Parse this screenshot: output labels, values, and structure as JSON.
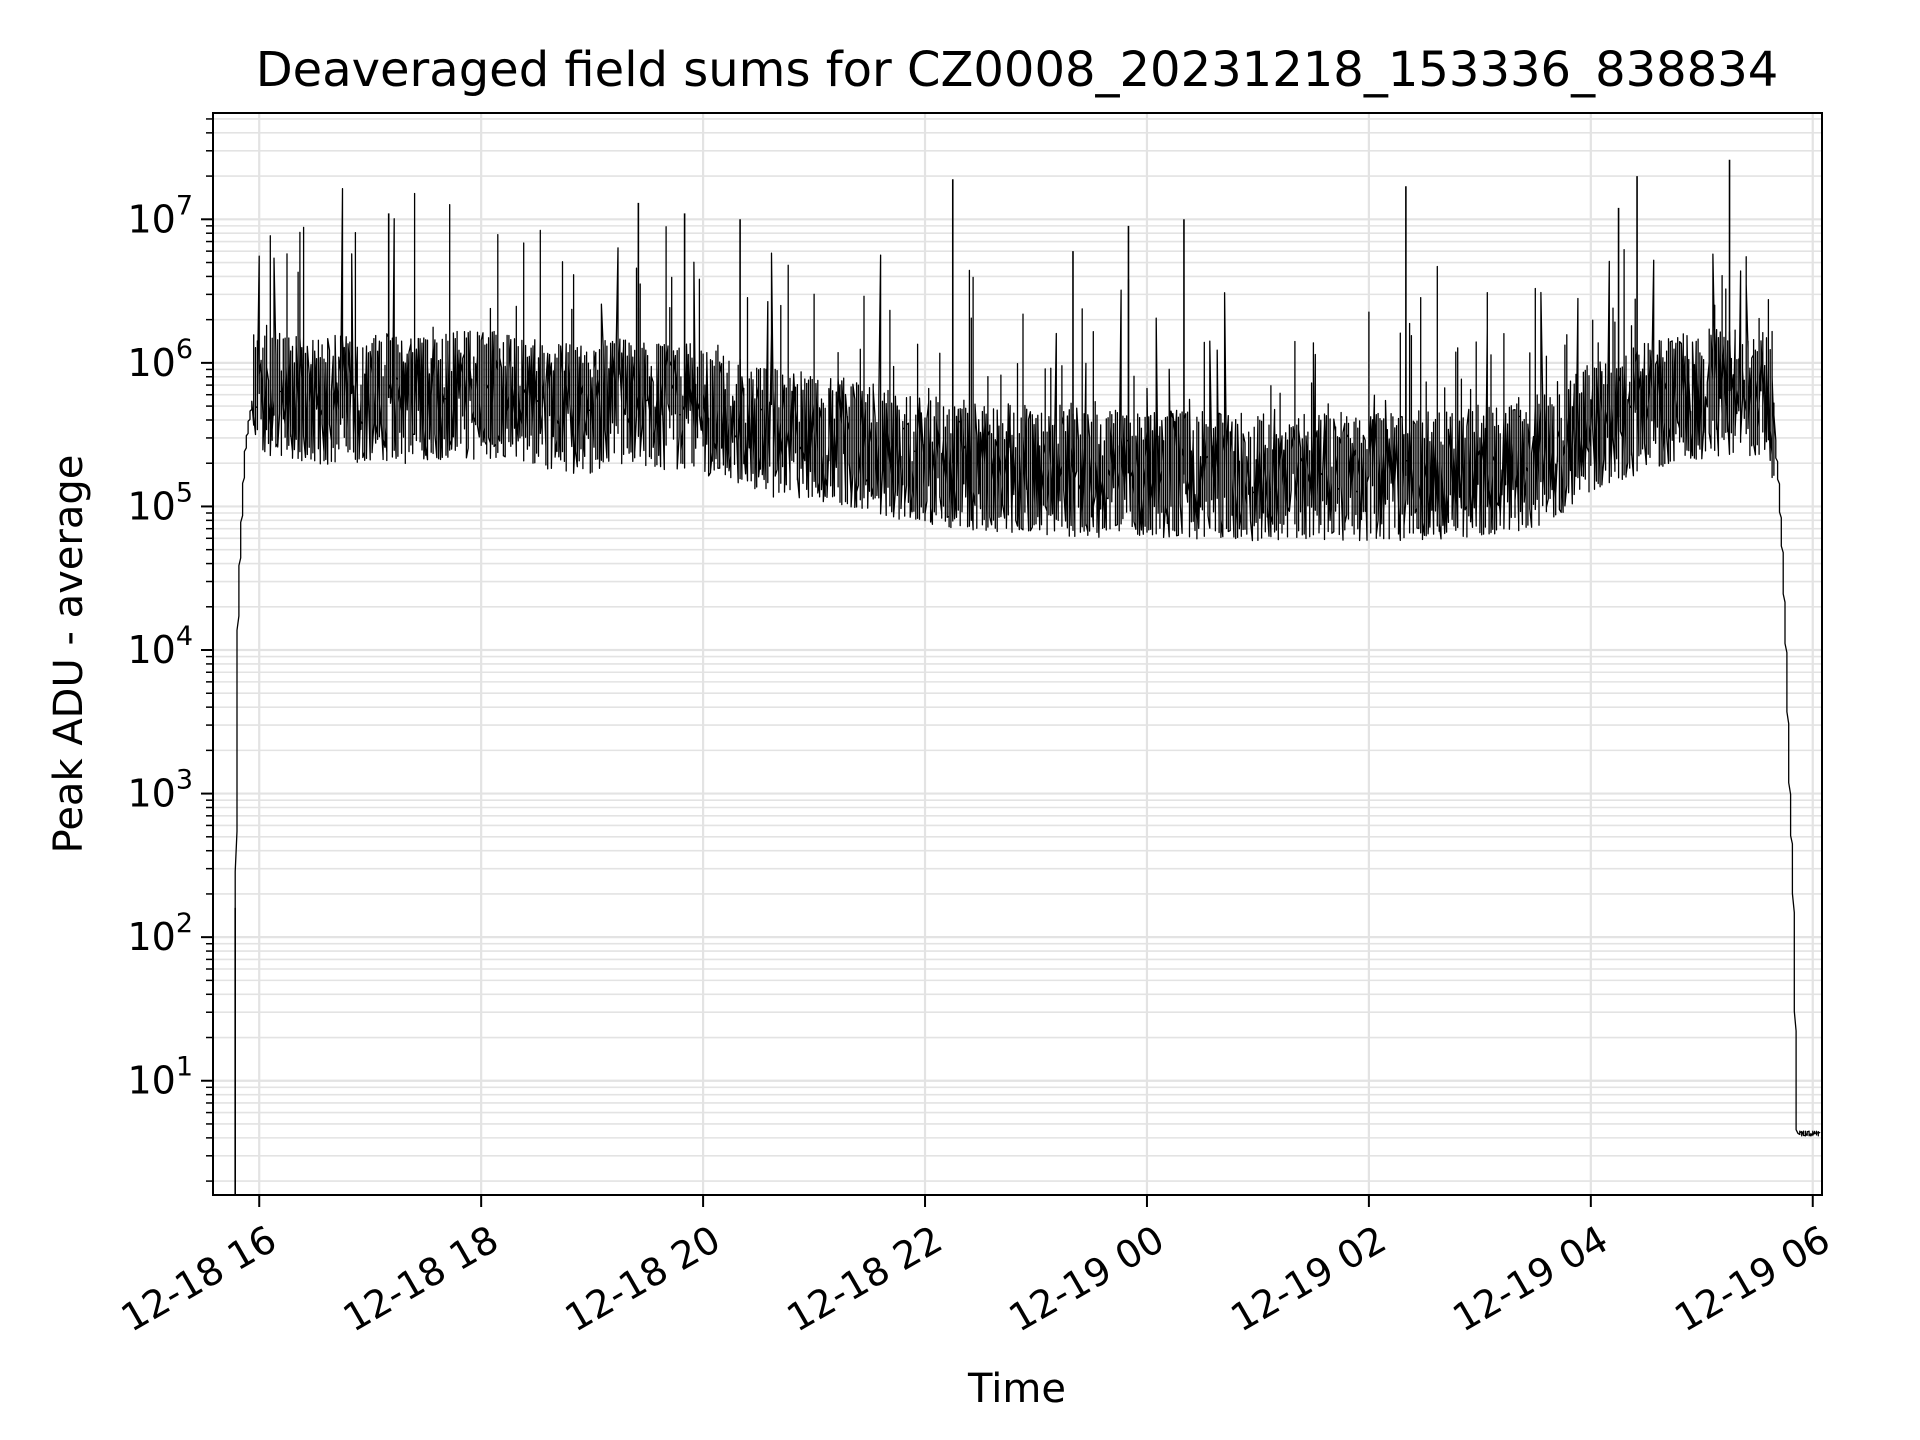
{
  "chart_data": {
    "type": "line",
    "title": "Deaveraged field sums for CZ0008_20231218_153336_838834",
    "xlabel": "Time",
    "ylabel": "Peak ADU - average",
    "y_scale": "log",
    "ylim": [
      1.6,
      55000000
    ],
    "xlim": [
      "2023-12-18 15:35",
      "2023-12-19 06:05"
    ],
    "grid": true,
    "x_ticks": [
      {
        "label": "12-18 16",
        "value": "2023-12-18 16:00"
      },
      {
        "label": "12-18 18",
        "value": "2023-12-18 18:00"
      },
      {
        "label": "12-18 20",
        "value": "2023-12-18 20:00"
      },
      {
        "label": "12-18 22",
        "value": "2023-12-18 22:00"
      },
      {
        "label": "12-19 00",
        "value": "2023-12-19 00:00"
      },
      {
        "label": "12-19 02",
        "value": "2023-12-19 02:00"
      },
      {
        "label": "12-19 04",
        "value": "2023-12-19 04:00"
      },
      {
        "label": "12-19 06",
        "value": "2023-12-19 06:00"
      }
    ],
    "y_ticks": [
      {
        "base": "10",
        "exp": "1",
        "value": 10
      },
      {
        "base": "10",
        "exp": "2",
        "value": 100
      },
      {
        "base": "10",
        "exp": "3",
        "value": 1000
      },
      {
        "base": "10",
        "exp": "4",
        "value": 10000
      },
      {
        "base": "10",
        "exp": "5",
        "value": 100000
      },
      {
        "base": "10",
        "exp": "6",
        "value": 1000000
      },
      {
        "base": "10",
        "exp": "7",
        "value": 10000000
      }
    ],
    "line_color": "#000000",
    "series": [
      {
        "x": [
          "2023-12-18 15:47",
          "2023-12-18 15:47",
          "2023-12-18 15:48",
          "2023-12-18 15:49",
          "2023-12-18 15:50",
          "2023-12-18 15:51",
          "2023-12-18 15:52",
          "2023-12-18 15:53",
          "2023-12-18 15:55",
          "2023-12-18 15:57",
          "2023-12-18 15:59",
          "2023-12-18 16:00",
          "2023-12-18 16:05",
          "2023-12-18 16:10",
          "2023-12-18 16:15",
          "2023-12-18 16:20",
          "2023-12-18 16:30",
          "2023-12-18 16:40",
          "2023-12-18 17:00",
          "2023-12-18 17:20",
          "2023-12-18 17:40",
          "2023-12-18 18:00",
          "2023-12-18 18:20",
          "2023-12-18 18:40",
          "2023-12-18 19:00",
          "2023-12-18 19:20",
          "2023-12-18 19:40",
          "2023-12-18 20:00",
          "2023-12-18 20:20",
          "2023-12-18 20:40",
          "2023-12-18 21:00",
          "2023-12-18 21:20",
          "2023-12-18 21:40",
          "2023-12-18 22:00",
          "2023-12-18 22:30",
          "2023-12-18 23:00",
          "2023-12-18 23:30",
          "2023-12-19 00:00",
          "2023-12-19 00:30",
          "2023-12-19 01:00",
          "2023-12-19 01:30",
          "2023-12-19 02:00",
          "2023-12-19 02:30",
          "2023-12-19 03:00",
          "2023-12-19 03:30",
          "2023-12-19 03:45",
          "2023-12-19 04:00",
          "2023-12-19 04:30",
          "2023-12-19 05:00",
          "2023-12-19 05:20",
          "2023-12-19 05:35",
          "2023-12-19 05:40",
          "2023-12-19 05:42",
          "2023-12-19 05:44",
          "2023-12-19 05:46",
          "2023-12-19 05:48",
          "2023-12-19 05:50",
          "2023-12-19 05:52",
          "2023-12-19 05:53",
          "2023-12-19 05:53",
          "2023-12-19 05:54",
          "2023-12-19 06:00",
          "2023-12-19 06:04"
        ],
        "y": [
          1.6,
          3.8,
          300,
          15000,
          40000,
          80000,
          150000,
          250000,
          400000,
          550000,
          650000,
          700000,
          650000,
          600000,
          600000,
          550000,
          550000,
          550000,
          580000,
          560000,
          580000,
          600000,
          580000,
          500000,
          450000,
          550000,
          500000,
          480000,
          380000,
          320000,
          300000,
          280000,
          240000,
          210000,
          190000,
          180000,
          170000,
          170000,
          165000,
          160000,
          160000,
          160000,
          165000,
          170000,
          200000,
          250000,
          350000,
          500000,
          600000,
          650000,
          620000,
          300000,
          150000,
          50000,
          10000,
          1000,
          200,
          4.3,
          4.3,
          4.3,
          4.3,
          4.3,
          4.3
        ],
        "spikes": {
          "x": [
            "2023-12-18 15:47",
            "2023-12-18 17:10",
            "2023-12-18 19:25",
            "2023-12-18 19:50",
            "2023-12-18 20:20",
            "2023-12-18 22:15",
            "2023-12-18 23:20",
            "2023-12-18 23:50",
            "2023-12-19 00:20",
            "2023-12-19 02:20",
            "2023-12-19 04:15",
            "2023-12-19 04:25",
            "2023-12-19 05:15"
          ],
          "y": [
            160,
            11000000,
            13000000,
            11000000,
            10000000,
            19000000,
            6000000,
            9000000,
            10000000,
            17000000,
            12000000,
            20000000,
            26000000
          ]
        }
      }
    ]
  }
}
